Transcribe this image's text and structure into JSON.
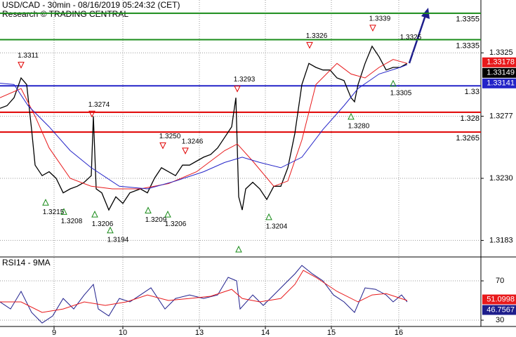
{
  "chart_data": [
    {
      "type": "line",
      "title": "USD/CAD - 30min - 08/16/2019 05:24:32 (CET)",
      "subtitle": "Research © TRADING CENTRAL",
      "xlim": [
        0,
        342.5
      ],
      "ylim": [
        1.3171,
        1.3365
      ],
      "yticks": [
        1.3325,
        1.3277,
        {
          "value": 1.323,
          "label": "1.3230"
        },
        1.3183
      ],
      "grid": true,
      "series": [
        {
          "color": "#000000",
          "x": [
            0,
            5,
            10,
            15,
            19,
            22.5,
            25,
            30,
            35,
            40,
            45,
            50,
            55,
            60,
            65,
            66.5,
            68.5,
            72.5,
            77.5,
            82.5,
            87.5,
            92.5,
            100,
            105,
            110,
            115,
            120,
            125,
            130,
            135,
            140,
            145,
            150,
            155,
            160,
            165,
            168,
            170,
            172.5,
            175,
            180,
            185,
            190,
            195,
            200,
            205,
            210,
            215,
            220,
            225,
            230,
            235,
            240,
            245,
            250,
            252.5,
            255,
            260,
            265,
            270,
            275,
            280,
            285,
            290
          ],
          "values": [
            1.3283,
            1.3285,
            1.3291,
            1.3306,
            1.3301,
            1.3267,
            1.324,
            1.3232,
            1.3235,
            1.323,
            1.3219,
            1.3222,
            1.3224,
            1.3227,
            1.3232,
            1.3277,
            1.3222,
            1.3219,
            1.3206,
            1.3216,
            1.3211,
            1.3219,
            1.3222,
            1.3219,
            1.323,
            1.3238,
            1.3235,
            1.3232,
            1.324,
            1.324,
            1.3243,
            1.3246,
            1.3248,
            1.3253,
            1.3261,
            1.3269,
            1.3291,
            1.3216,
            1.3206,
            1.3222,
            1.3227,
            1.3222,
            1.3214,
            1.3224,
            1.3224,
            1.3238,
            1.3264,
            1.3301,
            1.3317,
            1.3314,
            1.3312,
            1.3312,
            1.3306,
            1.3304,
            1.3291,
            1.3288,
            1.3301,
            1.3317,
            1.333,
            1.3322,
            1.3312,
            1.3314,
            1.3314,
            1.3317
          ]
        },
        {
          "color": "#e8191b",
          "x": [
            0,
            15,
            25,
            35,
            50,
            65,
            80,
            100,
            120,
            140,
            160,
            169,
            180,
            195,
            205,
            215,
            225,
            240,
            250,
            260,
            270,
            280,
            290
          ],
          "values": [
            1.3291,
            1.3298,
            1.3277,
            1.3253,
            1.323,
            1.3224,
            1.3222,
            1.3222,
            1.3226,
            1.3235,
            1.3251,
            1.3256,
            1.3243,
            1.3224,
            1.3228,
            1.3259,
            1.3301,
            1.3317,
            1.3309,
            1.3306,
            1.3314,
            1.332,
            1.3317
          ]
        },
        {
          "color": "#2424c8",
          "x": [
            0,
            10,
            20,
            35,
            50,
            65,
            85,
            105,
            125,
            145,
            160,
            172.5,
            185,
            200,
            215,
            230,
            245,
            255,
            270,
            285,
            290
          ],
          "values": [
            1.3302,
            1.3301,
            1.3285,
            1.3269,
            1.3251,
            1.3238,
            1.3224,
            1.3222,
            1.3228,
            1.3235,
            1.3242,
            1.3246,
            1.3242,
            1.3238,
            1.3246,
            1.3267,
            1.3285,
            1.3298,
            1.3309,
            1.3314,
            1.3316
          ]
        }
      ],
      "levels": [
        {
          "value": 1.3355,
          "label": "1.3355",
          "color": "#1a8c1a"
        },
        {
          "value": 1.3335,
          "label": "1.3335",
          "color": "#1a8c1a"
        },
        {
          "value": 1.33,
          "label": "1.33",
          "color": "#2424c8"
        },
        {
          "value": 1.328,
          "label": "1.328",
          "color": "#e00000"
        },
        {
          "value": 1.3265,
          "label": "1.3265",
          "color": "#e00000"
        }
      ],
      "annotations": [
        {
          "x": 15,
          "value": 1.3311,
          "label": "1.3311",
          "kind": "high"
        },
        {
          "x": 65.5,
          "value": 1.3274,
          "label": "1.3274",
          "kind": "high"
        },
        {
          "x": 116,
          "value": 1.325,
          "label": "1.3250",
          "kind": "high"
        },
        {
          "x": 132,
          "value": 1.3246,
          "label": "1.3246",
          "kind": "high"
        },
        {
          "x": 169,
          "value": 1.3293,
          "label": "1.3293",
          "kind": "high"
        },
        {
          "x": 220.5,
          "value": 1.3326,
          "label": "1.3326",
          "kind": "high"
        },
        {
          "x": 265.5,
          "value": 1.3339,
          "label": "1.3339",
          "kind": "high"
        },
        {
          "x": 287.5,
          "value": 1.3325,
          "label": "1.3325",
          "kind": "target"
        },
        {
          "x": 32.5,
          "value": 1.3215,
          "label": "1.3215",
          "kind": "low"
        },
        {
          "x": 45.5,
          "value": 1.3208,
          "label": "1.3208",
          "kind": "low"
        },
        {
          "x": 67.5,
          "value": 1.3206,
          "label": "1.3206",
          "kind": "low"
        },
        {
          "x": 78.5,
          "value": 1.3194,
          "label": "1.3194",
          "kind": "low"
        },
        {
          "x": 105.5,
          "value": 1.3209,
          "label": "1.3209",
          "kind": "low"
        },
        {
          "x": 119.5,
          "value": 1.3206,
          "label": "1.3206",
          "kind": "low"
        },
        {
          "x": 191.5,
          "value": 1.3204,
          "label": "1.3204",
          "kind": "low"
        },
        {
          "x": 250,
          "value": 1.328,
          "label": "1.3280",
          "kind": "low"
        },
        {
          "x": 280,
          "value": 1.3305,
          "label": "1.3305",
          "kind": "low"
        }
      ],
      "last_values": [
        {
          "value": 1.33178,
          "color": "#e8191b"
        },
        {
          "value": 1.33149,
          "color": "#000000"
        },
        {
          "value": 1.33141,
          "color": "#2424c8"
        }
      ]
    },
    {
      "type": "line",
      "title": "RSI14 - 9MA",
      "xlim": [
        0,
        342.5
      ],
      "ylim": [
        23.6,
        93.6
      ],
      "yticks": [
        70,
        30
      ],
      "xticks": [
        {
          "value": 38.5,
          "label": "9"
        },
        {
          "value": 87.5,
          "label": "10"
        },
        {
          "value": 142,
          "label": "13"
        },
        {
          "value": 189,
          "label": "14"
        },
        {
          "value": 236,
          "label": "15"
        },
        {
          "value": 284,
          "label": "16"
        }
      ],
      "grid": true,
      "series": [
        {
          "color": "#1e1e8c",
          "x": [
            0,
            7.5,
            15,
            22.5,
            30,
            37.5,
            45,
            52.5,
            60,
            66.5,
            70,
            77.5,
            85,
            92.5,
            100,
            107.5,
            117.5,
            125,
            135,
            145,
            155,
            162.5,
            168.5,
            171,
            180,
            187.5,
            195,
            205,
            210,
            215,
            222.5,
            230,
            237.5,
            245,
            252.5,
            260,
            267.5,
            275,
            280,
            286,
            290
          ],
          "values": [
            48.6,
            41.4,
            59.3,
            37.9,
            27.1,
            34.3,
            52.1,
            41.4,
            55.7,
            66.4,
            41.4,
            34.3,
            52.1,
            48.6,
            55.7,
            62.9,
            41.4,
            52.1,
            55.7,
            52.1,
            55.7,
            73.6,
            70.0,
            41.4,
            55.7,
            45.0,
            55.7,
            70.0,
            77.1,
            85.7,
            77.1,
            70.0,
            55.7,
            48.6,
            37.9,
            62.9,
            61.4,
            55.7,
            48.6,
            55.7,
            48.6
          ]
        },
        {
          "color": "#e8191b",
          "x": [
            0,
            15,
            30,
            45,
            60,
            75,
            90,
            105,
            120,
            135,
            150,
            165,
            172.5,
            185,
            200,
            210,
            216,
            225,
            240,
            255,
            265,
            275,
            290
          ],
          "values": [
            48.6,
            48.6,
            37.9,
            41.4,
            48.6,
            45.0,
            48.6,
            55.7,
            50.0,
            52.1,
            54.3,
            61.4,
            52.1,
            48.6,
            52.1,
            66.4,
            80.7,
            73.6,
            59.3,
            48.6,
            55.7,
            57.1,
            50.0
          ]
        }
      ],
      "last_values": [
        {
          "value": 51.0998,
          "color": "#e8191b"
        },
        {
          "value": 46.7567,
          "color": "#1e1e8c"
        }
      ]
    }
  ]
}
